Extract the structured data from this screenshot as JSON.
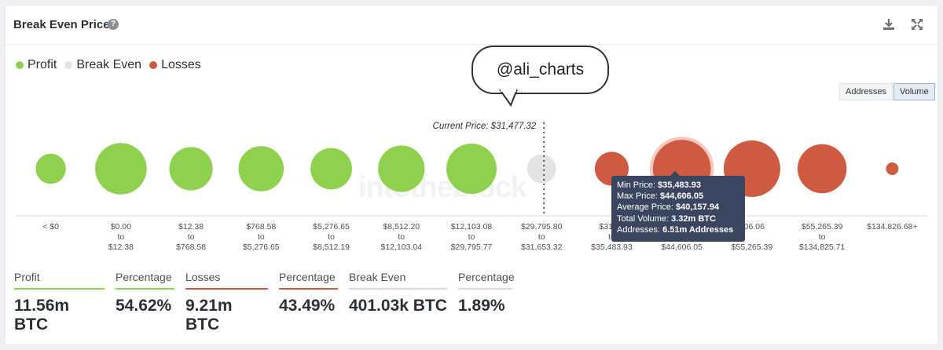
{
  "header": {
    "title": "Break Even Price",
    "help_icon": "question-circle-icon",
    "download_icon": "download-icon",
    "expand_icon": "expand-icon"
  },
  "legend": [
    {
      "label": "Profit",
      "color": "#8fd14f"
    },
    {
      "label": "Break Even",
      "color": "#e3e3e3"
    },
    {
      "label": "Losses",
      "color": "#cf5a42"
    }
  ],
  "toggles": {
    "addresses": "Addresses",
    "volume": "Volume",
    "active": "Volume"
  },
  "annotation": {
    "handle": "@ali_charts"
  },
  "watermark": "intotheblock",
  "chart_data": {
    "type": "bubble",
    "current_price_label": "Current Price: $31,477.32",
    "current_price": 31477.32,
    "highlighted_index": 9,
    "categories": [
      {
        "from": "< $0",
        "to": "",
        "to_word": "",
        "status": "profit",
        "size": 0.48
      },
      {
        "from": "$0.00",
        "to": "$12.38",
        "to_word": "to",
        "status": "profit",
        "size": 0.82
      },
      {
        "from": "$12.38",
        "to": "$768.58",
        "to_word": "to",
        "status": "profit",
        "size": 0.69
      },
      {
        "from": "$768.58",
        "to": "$5,276.65",
        "to_word": "to",
        "status": "profit",
        "size": 0.72
      },
      {
        "from": "$5,276.65",
        "to": "$8,512.19",
        "to_word": "to",
        "status": "profit",
        "size": 0.66
      },
      {
        "from": "$8,512.20",
        "to": "$12,103.04",
        "to_word": "to",
        "status": "profit",
        "size": 0.74
      },
      {
        "from": "$12,103.08",
        "to": "$29,795.77",
        "to_word": "to",
        "status": "profit",
        "size": 0.8
      },
      {
        "from": "$29,795.80",
        "to": "$31,653.32",
        "to_word": "to",
        "status": "breakeven",
        "size": 0.46
      },
      {
        "from": "$31,65",
        "to": "$35,483.93",
        "to_word": "to",
        "status": "loss",
        "size": 0.54
      },
      {
        "from": "",
        "to": "$44,606.05",
        "to_word": "",
        "status": "loss",
        "size": 0.92
      },
      {
        "from": "606.06",
        "to": "$55,265.39",
        "to_word": "",
        "status": "loss",
        "size": 0.9
      },
      {
        "from": "$55,265.39",
        "to": "$134,825.71",
        "to_word": "to",
        "status": "loss",
        "size": 0.78
      },
      {
        "from": "$134,826.68+",
        "to": "",
        "to_word": "",
        "status": "loss",
        "size": 0.2
      }
    ]
  },
  "tooltip": {
    "min_label": "Min Price:",
    "min_value": "$35,483.93",
    "max_label": "Max Price:",
    "max_value": "$44,606.05",
    "avg_label": "Average Price:",
    "avg_value": "$40,157.94",
    "vol_label": "Total Volume:",
    "vol_value": "3.32m BTC",
    "addr_label": "Addresses:",
    "addr_value": "6.51m Addresses"
  },
  "stats": [
    {
      "label": "Profit",
      "value": "11.56m BTC",
      "color": "#8fd14f"
    },
    {
      "label": "Percentage",
      "value": "54.62%",
      "color": "#8fd14f"
    },
    {
      "label": "Losses",
      "value": "9.21m BTC",
      "color": "#cf5a42"
    },
    {
      "label": "Percentage",
      "value": "43.49%",
      "color": "#cf5a42"
    },
    {
      "label": "Break Even",
      "value": "401.03k BTC",
      "color": "#d8d8d8"
    },
    {
      "label": "Percentage",
      "value": "1.89%",
      "color": "#d8d8d8"
    }
  ]
}
